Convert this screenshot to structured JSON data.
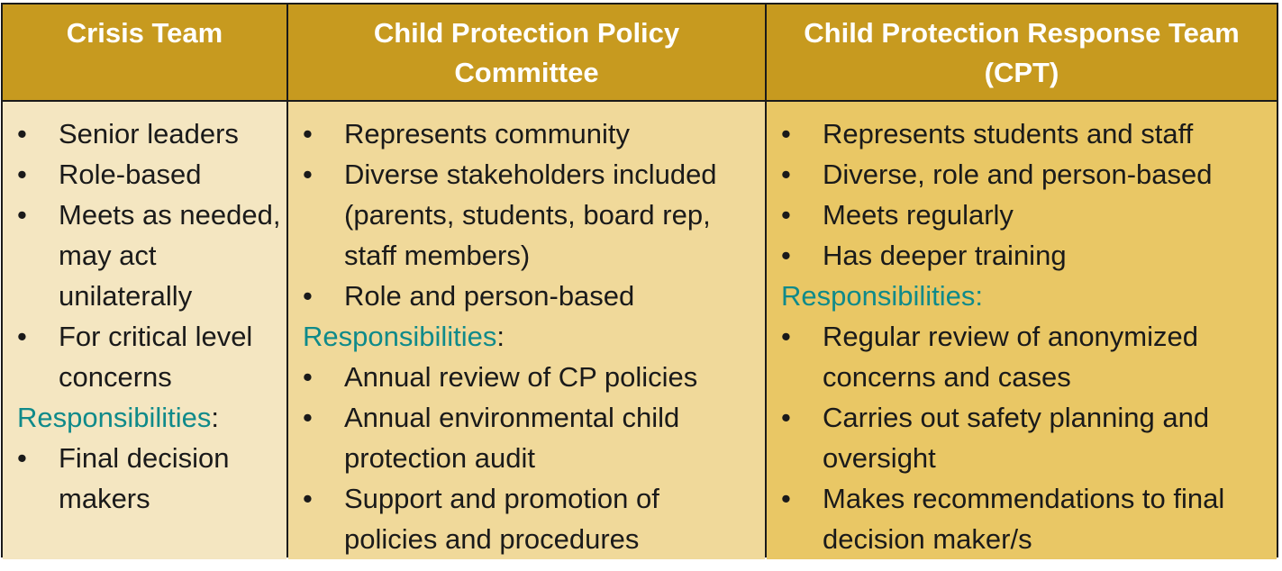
{
  "colors": {
    "header_bg": "#c79a1f",
    "col1_bg": "#f4e6c1",
    "col2_bg": "#f0d99a",
    "col3_bg": "#e9c765",
    "responsibilities_text": "#0f8a8a"
  },
  "bullet_glyph": "•",
  "columns": [
    {
      "header": [
        "Crisis Team"
      ],
      "items": [
        "Senior leaders",
        "Role-based",
        "Meets as needed, may act unilaterally",
        "For critical level concerns"
      ],
      "responsibilities_label": "Responsibilities",
      "responsibilities_suffix": ":",
      "responsibilities": [
        "Final decision makers"
      ]
    },
    {
      "header": [
        "Child Protection Policy",
        "Committee"
      ],
      "items": [
        "Represents community",
        "Diverse stakeholders included (parents, students, board rep, staff members)",
        "Role and person-based"
      ],
      "responsibilities_label": "Responsibilities",
      "responsibilities_suffix": ":",
      "responsibilities": [
        "Annual review of CP policies",
        "Annual environmental child protection audit",
        "Support and promotion of policies and procedures"
      ]
    },
    {
      "header": [
        "Child Protection Response Team",
        "(CPT)"
      ],
      "items": [
        "Represents students and staff",
        "Diverse, role and person-based",
        "Meets regularly",
        "Has deeper training"
      ],
      "responsibilities_label": "Responsibilities:",
      "responsibilities_suffix": "",
      "responsibilities": [
        "Regular review of anonymized concerns and cases",
        "Carries out safety planning and oversight",
        "Makes recommendations to final decision maker/s"
      ]
    }
  ]
}
